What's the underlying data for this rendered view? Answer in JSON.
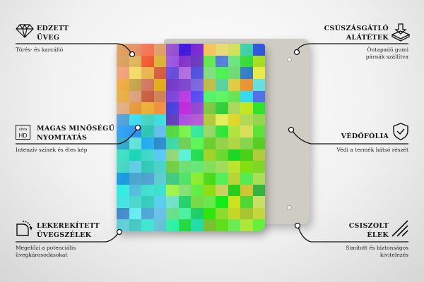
{
  "features": [
    {
      "id": "tempered-glass",
      "title_lines": [
        "EDZETT",
        "ÜVEG"
      ],
      "desc_lines": [
        "Törés- és karcálló"
      ],
      "icon": "diamond-icon"
    },
    {
      "id": "high-quality-print",
      "title_lines": [
        "MAGAS MINŐSÉGŰ",
        "NYOMTATÁS"
      ],
      "desc_lines": [
        "Intenzív színek és éles kép"
      ],
      "icon": "ultra-hd-icon",
      "icon_text": [
        "ultra",
        "HD"
      ]
    },
    {
      "id": "rounded-edges",
      "title_lines": [
        "LEKEREKÍTETT",
        "ÜVEGSZÉLEK"
      ],
      "desc_lines": [
        "Megelőzi a potenciális",
        "üvegkárosodásokat"
      ],
      "icon": "rounded-corner-icon"
    },
    {
      "id": "anti-slip-pads",
      "title_lines": [
        "CSÚSZÁSGÁTLÓ",
        "ALÁTÉTEK"
      ],
      "desc_lines": [
        "Öntapadó gumi",
        "párnák szállítva"
      ],
      "icon": "pad-down-arrow-icon"
    },
    {
      "id": "protective-foil",
      "title_lines": [
        "VÉDŐFÓLIA"
      ],
      "desc_lines": [
        "Védi a termék hátsó részét"
      ],
      "icon": "shield-check-icon"
    },
    {
      "id": "polished-edges",
      "title_lines": [
        "CSISZOLT",
        "ÉLEK"
      ],
      "desc_lines": [
        "Simított és biztonságos",
        "kivitelezés"
      ],
      "icon": "polished-edge-icon"
    }
  ],
  "colors": {
    "back_panel": "#cfcdc3",
    "line": "#111111"
  }
}
